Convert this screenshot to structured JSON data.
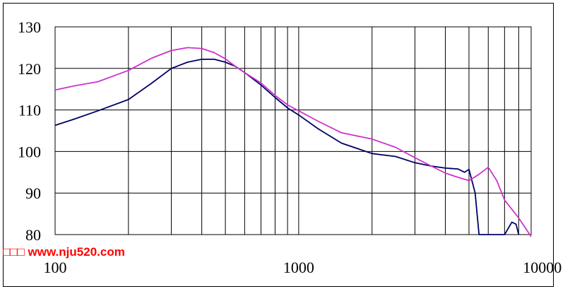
{
  "watermark": "□□□ www.nju520.com",
  "chart_data": {
    "type": "line",
    "title": "",
    "xlabel": "",
    "ylabel": "",
    "x_scale": "log",
    "xlim": [
      100,
      9000
    ],
    "ylim": [
      80,
      130
    ],
    "grid": true,
    "legend": "none",
    "x_tick_labels": [
      "100",
      "1000",
      "10000"
    ],
    "x_tick_values": [
      100,
      1000,
      10000
    ],
    "y_ticks": [
      80,
      90,
      100,
      110,
      120,
      130
    ],
    "series": [
      {
        "color": "#000066",
        "x": [
          100,
          120,
          150,
          200,
          250,
          300,
          350,
          400,
          450,
          500,
          550,
          600,
          700,
          800,
          900,
          1000,
          1200,
          1500,
          2000,
          2500,
          3000,
          3500,
          4000,
          4500,
          4800,
          5000,
          5300,
          5500,
          7000,
          7500,
          7800,
          8000
        ],
        "y": [
          106.3,
          107.8,
          109.8,
          112.5,
          116.5,
          120.0,
          121.5,
          122.2,
          122.2,
          121.5,
          120.5,
          119.0,
          116.0,
          113.0,
          110.5,
          108.8,
          105.5,
          102.0,
          99.5,
          98.8,
          97.3,
          96.5,
          96.0,
          95.8,
          95.0,
          95.7,
          90.0,
          80.0,
          80.0,
          83.0,
          82.5,
          80.0
        ]
      },
      {
        "color": "#cc33cc",
        "x": [
          100,
          120,
          150,
          200,
          250,
          300,
          350,
          400,
          450,
          500,
          550,
          600,
          700,
          800,
          900,
          1000,
          1200,
          1500,
          2000,
          2500,
          3000,
          3500,
          4000,
          4500,
          5000,
          5500,
          6000,
          6500,
          7000,
          8000,
          9000
        ],
        "y": [
          114.8,
          115.8,
          116.8,
          119.5,
          122.5,
          124.3,
          125.0,
          124.8,
          123.8,
          122.3,
          120.5,
          119.0,
          116.5,
          113.5,
          111.2,
          109.8,
          107.3,
          104.5,
          103.0,
          101.0,
          98.5,
          96.5,
          94.8,
          93.8,
          93.0,
          94.5,
          96.2,
          93.0,
          88.3,
          84.0,
          79.5
        ]
      }
    ]
  }
}
